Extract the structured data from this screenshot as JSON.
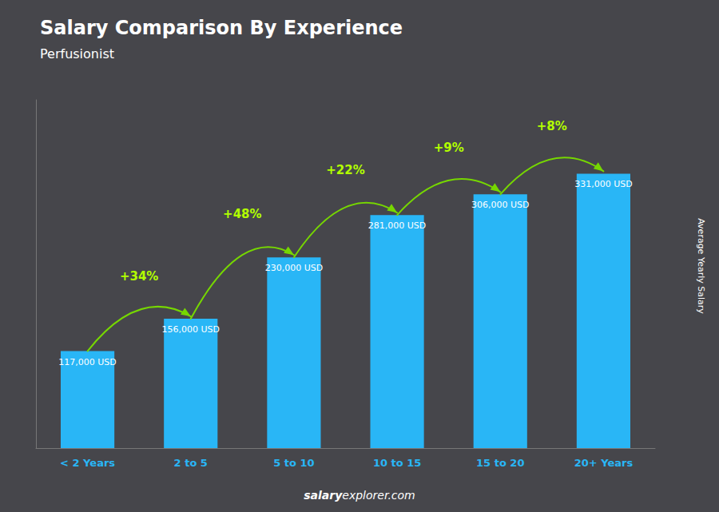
{
  "chart_data": {
    "type": "bar",
    "title": "Salary Comparison By Experience",
    "subtitle": "Perfusionist",
    "categories": [
      "< 2 Years",
      "2 to 5",
      "5 to 10",
      "10 to 15",
      "15 to 20",
      "20+ Years"
    ],
    "values": [
      117000,
      156000,
      230000,
      281000,
      306000,
      331000
    ],
    "value_labels": [
      "117,000 USD",
      "156,000 USD",
      "230,000 USD",
      "281,000 USD",
      "306,000 USD",
      "331,000 USD"
    ],
    "data_labels": true,
    "annotations": [
      "+34%",
      "+48%",
      "+22%",
      "+9%",
      "+8%"
    ],
    "y_label": "Average Yearly Salary",
    "footer": [
      "salary",
      "explorer.com"
    ],
    "color": "#29b6f6",
    "ylim": [
      0,
      420000
    ],
    "grid": false,
    "tick_labels": "x"
  }
}
